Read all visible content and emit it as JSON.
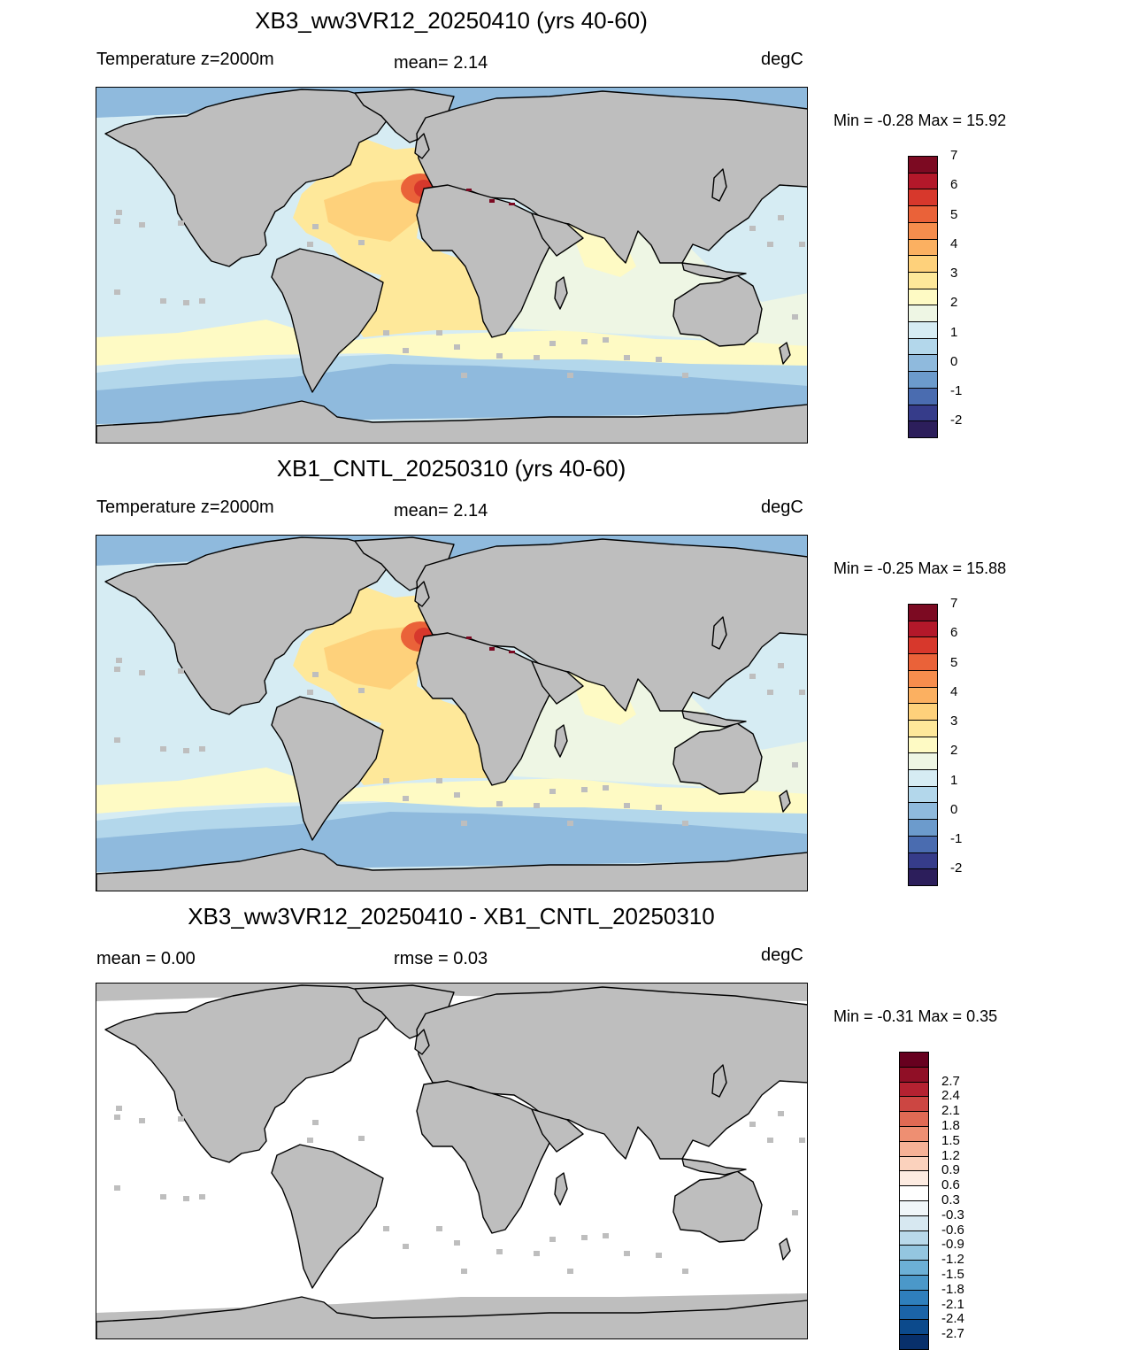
{
  "panels": [
    {
      "title": "XB3_ww3VR12_20250410 (yrs 40-60)",
      "left_label": "Temperature z=2000m",
      "mid_label": "mean=   2.14",
      "right_label": "degC",
      "minmax": "Min =  -0.28 Max =  15.92",
      "kind": "field",
      "colorbar": {
        "colors": [
          "#2c1e5b",
          "#363c8a",
          "#4a6cb0",
          "#6c9bcc",
          "#8fbadd",
          "#b3d7eb",
          "#d6ecf3",
          "#eef6e4",
          "#fefac4",
          "#fee89a",
          "#fed17b",
          "#fbb061",
          "#f68d4d",
          "#ea6239",
          "#d7382c",
          "#b3182a",
          "#7c0a22"
        ],
        "labels": [
          "-2",
          "-1",
          "0",
          "1",
          "2",
          "3",
          "4",
          "5",
          "6",
          "7"
        ]
      }
    },
    {
      "title": "XB1_CNTL_20250310 (yrs 40-60)",
      "left_label": "Temperature z=2000m",
      "mid_label": "mean=   2.14",
      "right_label": "degC",
      "minmax": "Min =  -0.25 Max =  15.88",
      "kind": "field",
      "colorbar": {
        "colors": [
          "#2c1e5b",
          "#363c8a",
          "#4a6cb0",
          "#6c9bcc",
          "#8fbadd",
          "#b3d7eb",
          "#d6ecf3",
          "#eef6e4",
          "#fefac4",
          "#fee89a",
          "#fed17b",
          "#fbb061",
          "#f68d4d",
          "#ea6239",
          "#d7382c",
          "#b3182a",
          "#7c0a22"
        ],
        "labels": [
          "-2",
          "-1",
          "0",
          "1",
          "2",
          "3",
          "4",
          "5",
          "6",
          "7"
        ]
      }
    },
    {
      "title": "XB3_ww3VR12_20250410 - XB1_CNTL_20250310",
      "left_label": "mean =    0.00",
      "mid_label": "rmse =    0.03",
      "right_label": "degC",
      "minmax": "Min =  -0.31 Max =   0.35",
      "kind": "diff",
      "colorbar": {
        "colors": [
          "#08306b",
          "#0c4a8c",
          "#1b64a8",
          "#2f7fbc",
          "#4b98c9",
          "#6cb0d6",
          "#94c6e0",
          "#b9d9ea",
          "#d7e8f1",
          "#f0f6f9",
          "#ffffff",
          "#fdebe1",
          "#fbd2bd",
          "#f6b297",
          "#ee8f72",
          "#e06a54",
          "#cc4642",
          "#b42231",
          "#900f26",
          "#67001f"
        ],
        "labels": [
          "-2.7",
          "-2.4",
          "-2.1",
          "-1.8",
          "-1.5",
          "-1.2",
          "-0.9",
          "-0.6",
          "-0.3",
          "0.3",
          "0.6",
          "0.9",
          "1.2",
          "1.5",
          "1.8",
          "2.1",
          "2.4",
          "2.7"
        ]
      }
    }
  ],
  "land_color": "#bebebe",
  "field_colors": {
    "arctic": "#8fbadd",
    "southern": "#8fbadd",
    "southern_light": "#b3d7eb",
    "pacific": "#d6ecf3",
    "indian": "#eef6e4",
    "south_band": "#fefac4",
    "atlantic": "#fee89a",
    "atlantic_warm": "#fed17b",
    "arabian": "#fefac4",
    "med_outflow": "#ea6239",
    "med_core": "#d7382c",
    "med_sea": "#7c0a22"
  }
}
